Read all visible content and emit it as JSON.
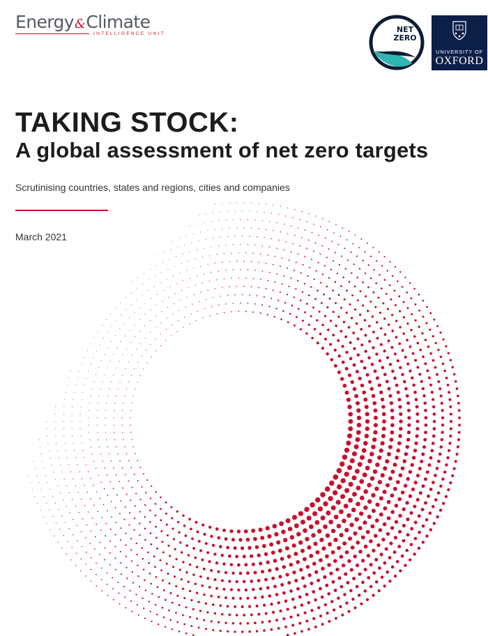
{
  "header": {
    "eciu_logo": {
      "word_left": "Energy",
      "ampersand": "&",
      "word_right": "Climate",
      "subline": "INTELLIGENCE UNIT"
    },
    "net_zero_badge": {
      "line1": "NET",
      "line2": "ZERO"
    },
    "oxford_logo": {
      "line1": "UNIVERSITY OF",
      "line2": "OXFORD"
    }
  },
  "title": {
    "line1": "TAKING STOCK:",
    "line2": "A global assessment of net zero targets"
  },
  "subtitle": "Scrutinising countries, states and regions, cities and companies",
  "date": "March 2021",
  "colors": {
    "accent_red": "#c8102e",
    "oxford_navy": "#0b1f47",
    "text_dark": "#1c1c1c",
    "logo_grey": "#555a62",
    "net_zero_teal": "#2fb6b2"
  }
}
